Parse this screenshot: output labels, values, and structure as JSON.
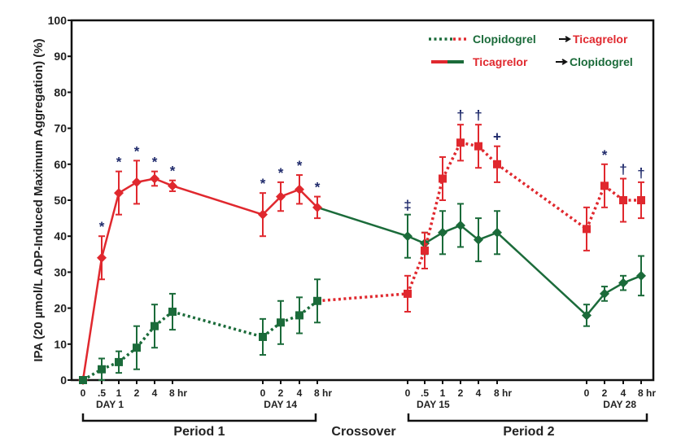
{
  "chart_data": {
    "type": "line",
    "title": "",
    "ylabel": "IPA (20 µmol/L ADP-Induced Maximum Aggregation) (%)",
    "ylim": [
      0,
      100
    ],
    "yticks": [
      0,
      10,
      20,
      30,
      40,
      50,
      60,
      70,
      80,
      90,
      100
    ],
    "x_groups": [
      {
        "day_label": "DAY 1",
        "ticks": [
          "0",
          ".5",
          "1",
          "2",
          "4",
          "8 hr"
        ]
      },
      {
        "day_label": "DAY 14",
        "ticks": [
          "0",
          "2",
          "4",
          "8 hr"
        ]
      },
      {
        "day_label": "DAY 15",
        "ticks": [
          "0",
          ".5",
          "1",
          "2",
          "4",
          "8 hr"
        ]
      },
      {
        "day_label": "DAY 28",
        "ticks": [
          "0",
          "2",
          "4",
          "8 hr"
        ]
      }
    ],
    "periods": [
      "Period 1",
      "Crossover",
      "Period 2"
    ],
    "grid": false,
    "legend_position": "top-right",
    "legend": [
      {
        "from": "Clopidogrel",
        "to": "Ticagrelor",
        "style": "dotted",
        "from_color": "#1b6b3a",
        "to_color": "#e0282e"
      },
      {
        "from": "Ticagrelor",
        "to": "Clopidogrel",
        "style": "solid",
        "from_color": "#e0282e",
        "to_color": "#1b6b3a"
      }
    ],
    "colors": {
      "ticagrelor": "#e0282e",
      "clopidogrel": "#1b6b3a",
      "significance": "#1f2a6b"
    },
    "series": [
      {
        "name": "Ticagrelor → Clopidogrel",
        "style": "solid",
        "marker": "diamond",
        "points": [
          {
            "group": 0,
            "tick": 0,
            "y": 0,
            "err": 0,
            "drug": "ticagrelor"
          },
          {
            "group": 0,
            "tick": 1,
            "y": 34,
            "err": 6,
            "drug": "ticagrelor",
            "sig": "*"
          },
          {
            "group": 0,
            "tick": 2,
            "y": 52,
            "err": 6,
            "drug": "ticagrelor",
            "sig": "*"
          },
          {
            "group": 0,
            "tick": 3,
            "y": 55,
            "err": 6,
            "drug": "ticagrelor",
            "sig": "*"
          },
          {
            "group": 0,
            "tick": 4,
            "y": 56,
            "err": 2,
            "drug": "ticagrelor",
            "sig": "*"
          },
          {
            "group": 0,
            "tick": 5,
            "y": 54,
            "err": 1.5,
            "drug": "ticagrelor",
            "sig": "*"
          },
          {
            "group": 1,
            "tick": 0,
            "y": 46,
            "err": 6,
            "drug": "ticagrelor",
            "sig": "*"
          },
          {
            "group": 1,
            "tick": 1,
            "y": 51,
            "err": 4,
            "drug": "ticagrelor",
            "sig": "*"
          },
          {
            "group": 1,
            "tick": 2,
            "y": 53,
            "err": 4,
            "drug": "ticagrelor",
            "sig": "*"
          },
          {
            "group": 1,
            "tick": 3,
            "y": 48,
            "err": 3,
            "drug": "ticagrelor",
            "sig": "*"
          },
          {
            "group": 2,
            "tick": 0,
            "y": 40,
            "err": 6,
            "drug": "clopidogrel",
            "sig": "‡"
          },
          {
            "group": 2,
            "tick": 1,
            "y": 38,
            "err": 3,
            "drug": "clopidogrel"
          },
          {
            "group": 2,
            "tick": 2,
            "y": 41,
            "err": 6,
            "drug": "clopidogrel"
          },
          {
            "group": 2,
            "tick": 3,
            "y": 43,
            "err": 6,
            "drug": "clopidogrel"
          },
          {
            "group": 2,
            "tick": 4,
            "y": 39,
            "err": 6,
            "drug": "clopidogrel"
          },
          {
            "group": 2,
            "tick": 5,
            "y": 41,
            "err": 6,
            "drug": "clopidogrel"
          },
          {
            "group": 3,
            "tick": 0,
            "y": 18,
            "err": 3,
            "drug": "clopidogrel"
          },
          {
            "group": 3,
            "tick": 1,
            "y": 24,
            "err": 2,
            "drug": "clopidogrel"
          },
          {
            "group": 3,
            "tick": 2,
            "y": 27,
            "err": 2,
            "drug": "clopidogrel"
          },
          {
            "group": 3,
            "tick": 3,
            "y": 29,
            "err": 5.5,
            "drug": "clopidogrel"
          }
        ]
      },
      {
        "name": "Clopidogrel → Ticagrelor",
        "style": "dotted",
        "marker": "square",
        "points": [
          {
            "group": 0,
            "tick": 0,
            "y": 0,
            "err": 0,
            "drug": "clopidogrel"
          },
          {
            "group": 0,
            "tick": 1,
            "y": 3,
            "err": 3,
            "drug": "clopidogrel"
          },
          {
            "group": 0,
            "tick": 2,
            "y": 5,
            "err": 3,
            "drug": "clopidogrel"
          },
          {
            "group": 0,
            "tick": 3,
            "y": 9,
            "err": 6,
            "drug": "clopidogrel"
          },
          {
            "group": 0,
            "tick": 4,
            "y": 15,
            "err": 6,
            "drug": "clopidogrel"
          },
          {
            "group": 0,
            "tick": 5,
            "y": 19,
            "err": 5,
            "drug": "clopidogrel"
          },
          {
            "group": 1,
            "tick": 0,
            "y": 12,
            "err": 5,
            "drug": "clopidogrel"
          },
          {
            "group": 1,
            "tick": 1,
            "y": 16,
            "err": 6,
            "drug": "clopidogrel"
          },
          {
            "group": 1,
            "tick": 2,
            "y": 18,
            "err": 5,
            "drug": "clopidogrel"
          },
          {
            "group": 1,
            "tick": 3,
            "y": 22,
            "err": 6,
            "drug": "clopidogrel"
          },
          {
            "group": 2,
            "tick": 0,
            "y": 24,
            "err": 5,
            "drug": "ticagrelor"
          },
          {
            "group": 2,
            "tick": 1,
            "y": 36,
            "err": 5,
            "drug": "ticagrelor"
          },
          {
            "group": 2,
            "tick": 2,
            "y": 56,
            "err": 6,
            "drug": "ticagrelor"
          },
          {
            "group": 2,
            "tick": 3,
            "y": 66,
            "err": 5,
            "drug": "ticagrelor",
            "sig": "†"
          },
          {
            "group": 2,
            "tick": 4,
            "y": 65,
            "err": 6,
            "drug": "ticagrelor",
            "sig": "†"
          },
          {
            "group": 2,
            "tick": 5,
            "y": 60,
            "err": 5,
            "drug": "ticagrelor",
            "sig": "+"
          },
          {
            "group": 3,
            "tick": 0,
            "y": 42,
            "err": 6,
            "drug": "ticagrelor"
          },
          {
            "group": 3,
            "tick": 1,
            "y": 54,
            "err": 6,
            "drug": "ticagrelor",
            "sig": "*"
          },
          {
            "group": 3,
            "tick": 2,
            "y": 50,
            "err": 6,
            "drug": "ticagrelor",
            "sig": "†"
          },
          {
            "group": 3,
            "tick": 3,
            "y": 50,
            "err": 5,
            "drug": "ticagrelor",
            "sig": "†"
          }
        ]
      }
    ]
  }
}
